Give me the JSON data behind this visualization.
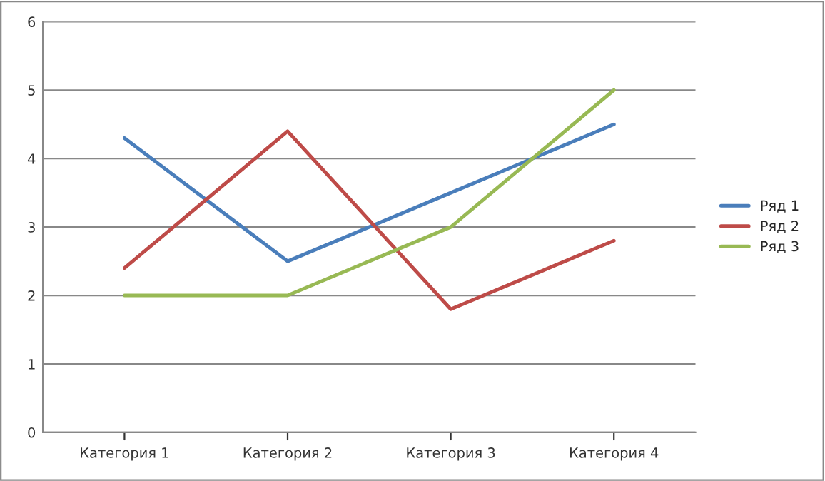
{
  "chart_data": {
    "type": "line",
    "categories": [
      "Категория 1",
      "Категория 2",
      "Категория 3",
      "Категория 4"
    ],
    "series": [
      {
        "name": "Ряд 1",
        "color": "#4a7ebb",
        "values": [
          4.3,
          2.5,
          3.5,
          4.5
        ]
      },
      {
        "name": "Ряд 2",
        "color": "#be4b48",
        "values": [
          2.4,
          4.4,
          1.8,
          2.8
        ]
      },
      {
        "name": "Ряд 3",
        "color": "#98b954",
        "values": [
          2,
          2,
          3,
          5
        ]
      }
    ],
    "ylim": [
      0,
      6
    ],
    "yticks": [
      0,
      1,
      2,
      3,
      4,
      5,
      6
    ],
    "grid": "y",
    "legend": "right",
    "marker": "none",
    "line_style": "solid"
  }
}
